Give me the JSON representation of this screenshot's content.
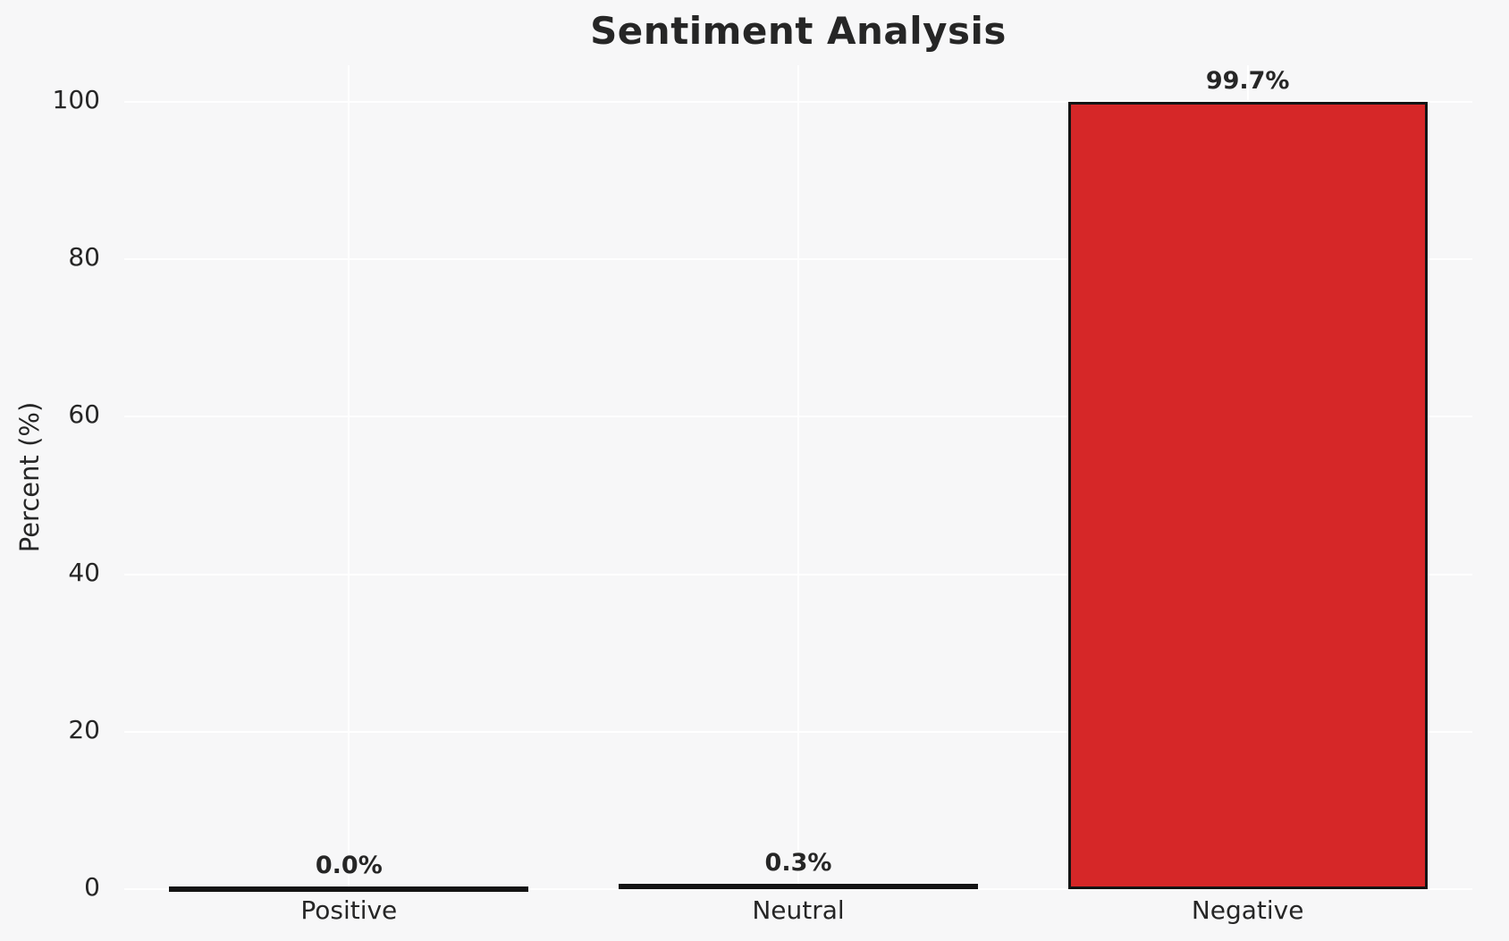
{
  "chart_data": {
    "type": "bar",
    "title": "Sentiment Analysis",
    "xlabel": "",
    "ylabel": "Percent (%)",
    "categories": [
      "Positive",
      "Neutral",
      "Negative"
    ],
    "values": [
      0.0,
      0.3,
      99.7
    ],
    "value_labels": [
      "0.0%",
      "0.3%",
      "99.7%"
    ],
    "yticks": [
      0,
      20,
      40,
      60,
      80,
      100
    ],
    "ytick_labels": [
      "0",
      "20",
      "40",
      "60",
      "80",
      "100"
    ],
    "ylim": [
      0,
      104.65
    ],
    "grid": true,
    "grid_axes": "both",
    "legend": false,
    "bar_relative_width": 0.8,
    "colors": {
      "background": "#f7f7f8",
      "gridline": "#ffffff",
      "bar_fill": "#d62728",
      "bar_edge": "#141414",
      "text": "#262626"
    }
  }
}
